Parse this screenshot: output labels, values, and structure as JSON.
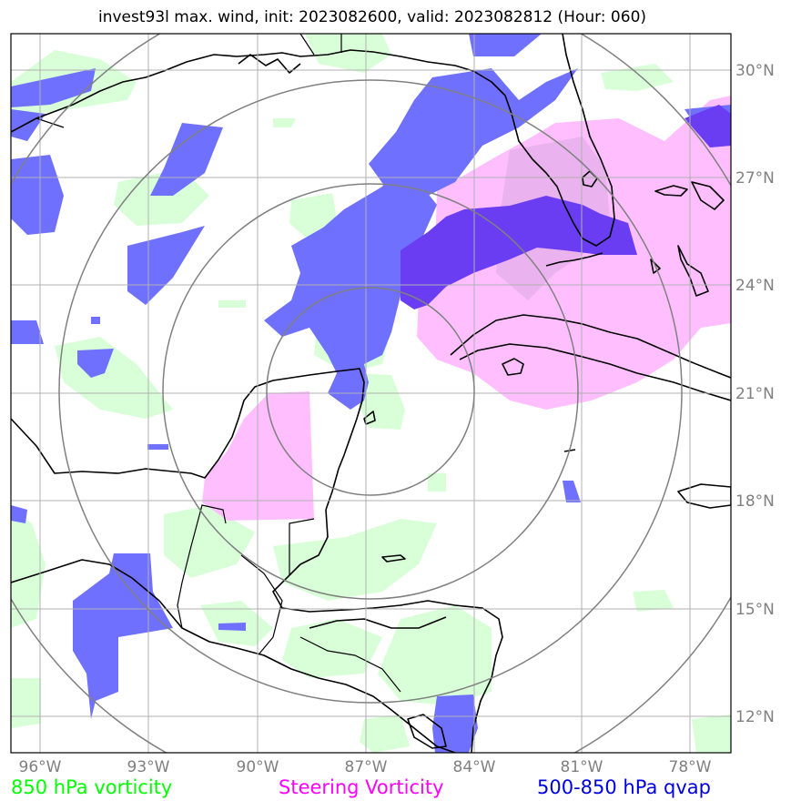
{
  "title": "invest93l max. wind, init: 2023082600, valid: 2023082812 (Hour: 060)",
  "axes": {
    "lon_labels": [
      "96°W",
      "93°W",
      "90°W",
      "87°W",
      "84°W",
      "81°W",
      "78°W"
    ],
    "lat_labels": [
      "30°N",
      "27°N",
      "24°N",
      "21°N",
      "18°N",
      "15°N",
      "12°N"
    ]
  },
  "legend": {
    "green": "850 hPa vorticity",
    "magenta": "Steering Vorticity",
    "blue": "500-850 hPa qvap"
  },
  "colors": {
    "green": "#00ff00",
    "magenta": "#ff00ff",
    "blue": "#0000dd",
    "green_fill": "#d9ffd9",
    "magenta_fill": "#ffbfff",
    "blue_fill": "#7070ff",
    "blue_dark_fill": "#6a3df2",
    "grid": "#b0b0b0",
    "rings": "#808080"
  },
  "map": {
    "center": "87°W 21°N",
    "range_rings": 4
  }
}
